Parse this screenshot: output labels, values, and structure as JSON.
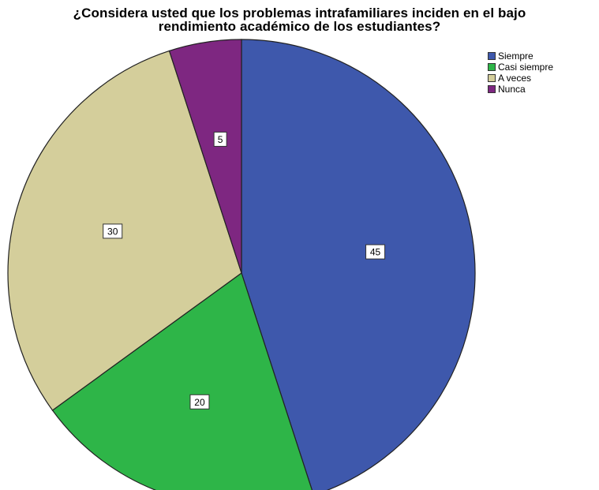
{
  "chart_data": {
    "type": "pie",
    "title_lines": [
      "¿Considera usted que los problemas intrafamiliares inciden en el bajo",
      "rendimiento académico de los estudiantes?"
    ],
    "categories": [
      "Siempre",
      "Casi siempre",
      "A veces",
      "Nunca"
    ],
    "values": [
      45,
      20,
      30,
      5
    ],
    "colors": [
      "#3E58AC",
      "#2EB548",
      "#D4CE9B",
      "#7E2781"
    ],
    "start": "12 o'clock",
    "direction": "clockwise",
    "legend_position": "top-right",
    "data_labels": true
  }
}
